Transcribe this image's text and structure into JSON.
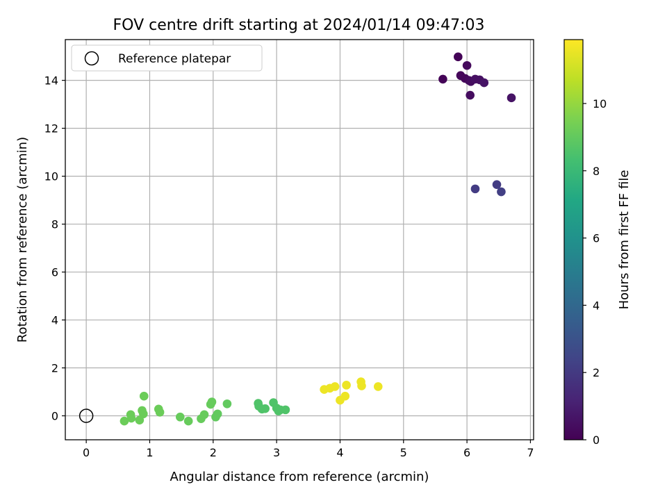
{
  "chart_data": {
    "type": "scatter",
    "title": "FOV centre drift starting at 2024/01/14 09:47:03",
    "xlabel": "Angular distance from reference (arcmin)",
    "ylabel": "Rotation from reference (arcmin)",
    "xlim": [
      -0.33,
      7.05
    ],
    "ylim": [
      -1.0,
      15.7
    ],
    "xticks": [
      "0",
      "1",
      "2",
      "3",
      "4",
      "5",
      "6",
      "7"
    ],
    "yticks": [
      "0",
      "2",
      "4",
      "6",
      "8",
      "10",
      "12",
      "14"
    ],
    "grid": true,
    "legend": {
      "position": "top-left",
      "entries": [
        "Reference platepar"
      ]
    },
    "reference_point": {
      "x": 0,
      "y": 0,
      "name": "Reference platepar"
    },
    "colorbar": {
      "label": "Hours from first FF file",
      "range": [
        0,
        11.9
      ],
      "ticks": [
        "0",
        "2",
        "4",
        "6",
        "8",
        "10"
      ],
      "colormap": "viridis"
    },
    "points": [
      {
        "x": 5.62,
        "y": 14.05,
        "c": 0.1
      },
      {
        "x": 5.86,
        "y": 14.98,
        "c": 0.1
      },
      {
        "x": 5.9,
        "y": 14.2,
        "c": 0.2
      },
      {
        "x": 5.97,
        "y": 14.08,
        "c": 0.2
      },
      {
        "x": 6.0,
        "y": 14.62,
        "c": 0.3
      },
      {
        "x": 6.03,
        "y": 14.0,
        "c": 0.3
      },
      {
        "x": 6.06,
        "y": 13.95,
        "c": 0.4
      },
      {
        "x": 6.05,
        "y": 13.38,
        "c": 0.4
      },
      {
        "x": 6.13,
        "y": 14.05,
        "c": 0.5
      },
      {
        "x": 6.2,
        "y": 14.02,
        "c": 0.5
      },
      {
        "x": 6.27,
        "y": 13.9,
        "c": 0.6
      },
      {
        "x": 6.7,
        "y": 13.27,
        "c": 0.6
      },
      {
        "x": 6.13,
        "y": 9.47,
        "c": 2.1
      },
      {
        "x": 6.47,
        "y": 9.65,
        "c": 2.1
      },
      {
        "x": 6.54,
        "y": 9.35,
        "c": 2.2
      },
      {
        "x": 0.6,
        "y": -0.22,
        "c": 9.2
      },
      {
        "x": 0.7,
        "y": 0.05,
        "c": 9.2
      },
      {
        "x": 0.71,
        "y": -0.1,
        "c": 9.2
      },
      {
        "x": 0.84,
        "y": -0.18,
        "c": 9.2
      },
      {
        "x": 0.88,
        "y": 0.22,
        "c": 9.2
      },
      {
        "x": 0.9,
        "y": 0.08,
        "c": 9.2
      },
      {
        "x": 0.91,
        "y": 0.82,
        "c": 9.2
      },
      {
        "x": 1.14,
        "y": 0.28,
        "c": 9.2
      },
      {
        "x": 1.16,
        "y": 0.15,
        "c": 9.2
      },
      {
        "x": 1.48,
        "y": -0.05,
        "c": 9.1
      },
      {
        "x": 1.61,
        "y": -0.22,
        "c": 9.1
      },
      {
        "x": 1.81,
        "y": -0.12,
        "c": 9.1
      },
      {
        "x": 1.86,
        "y": 0.05,
        "c": 9.1
      },
      {
        "x": 1.96,
        "y": 0.48,
        "c": 9.1
      },
      {
        "x": 1.98,
        "y": 0.58,
        "c": 9.1
      },
      {
        "x": 2.04,
        "y": -0.05,
        "c": 9.0
      },
      {
        "x": 2.07,
        "y": 0.08,
        "c": 9.0
      },
      {
        "x": 2.22,
        "y": 0.5,
        "c": 9.0
      },
      {
        "x": 2.71,
        "y": 0.52,
        "c": 8.6
      },
      {
        "x": 2.72,
        "y": 0.4,
        "c": 8.6
      },
      {
        "x": 2.77,
        "y": 0.28,
        "c": 8.6
      },
      {
        "x": 2.82,
        "y": 0.3,
        "c": 8.6
      },
      {
        "x": 2.95,
        "y": 0.55,
        "c": 8.6
      },
      {
        "x": 3.0,
        "y": 0.32,
        "c": 8.6
      },
      {
        "x": 3.03,
        "y": 0.2,
        "c": 8.6
      },
      {
        "x": 3.06,
        "y": 0.25,
        "c": 8.6
      },
      {
        "x": 3.14,
        "y": 0.25,
        "c": 8.6
      },
      {
        "x": 3.75,
        "y": 1.1,
        "c": 11.6
      },
      {
        "x": 3.84,
        "y": 1.15,
        "c": 11.6
      },
      {
        "x": 3.92,
        "y": 1.22,
        "c": 11.6
      },
      {
        "x": 4.0,
        "y": 0.65,
        "c": 11.6
      },
      {
        "x": 4.08,
        "y": 0.82,
        "c": 11.6
      },
      {
        "x": 4.1,
        "y": 1.28,
        "c": 11.6
      },
      {
        "x": 4.33,
        "y": 1.42,
        "c": 11.6
      },
      {
        "x": 4.34,
        "y": 1.25,
        "c": 11.6
      },
      {
        "x": 4.6,
        "y": 1.22,
        "c": 11.6
      }
    ]
  }
}
